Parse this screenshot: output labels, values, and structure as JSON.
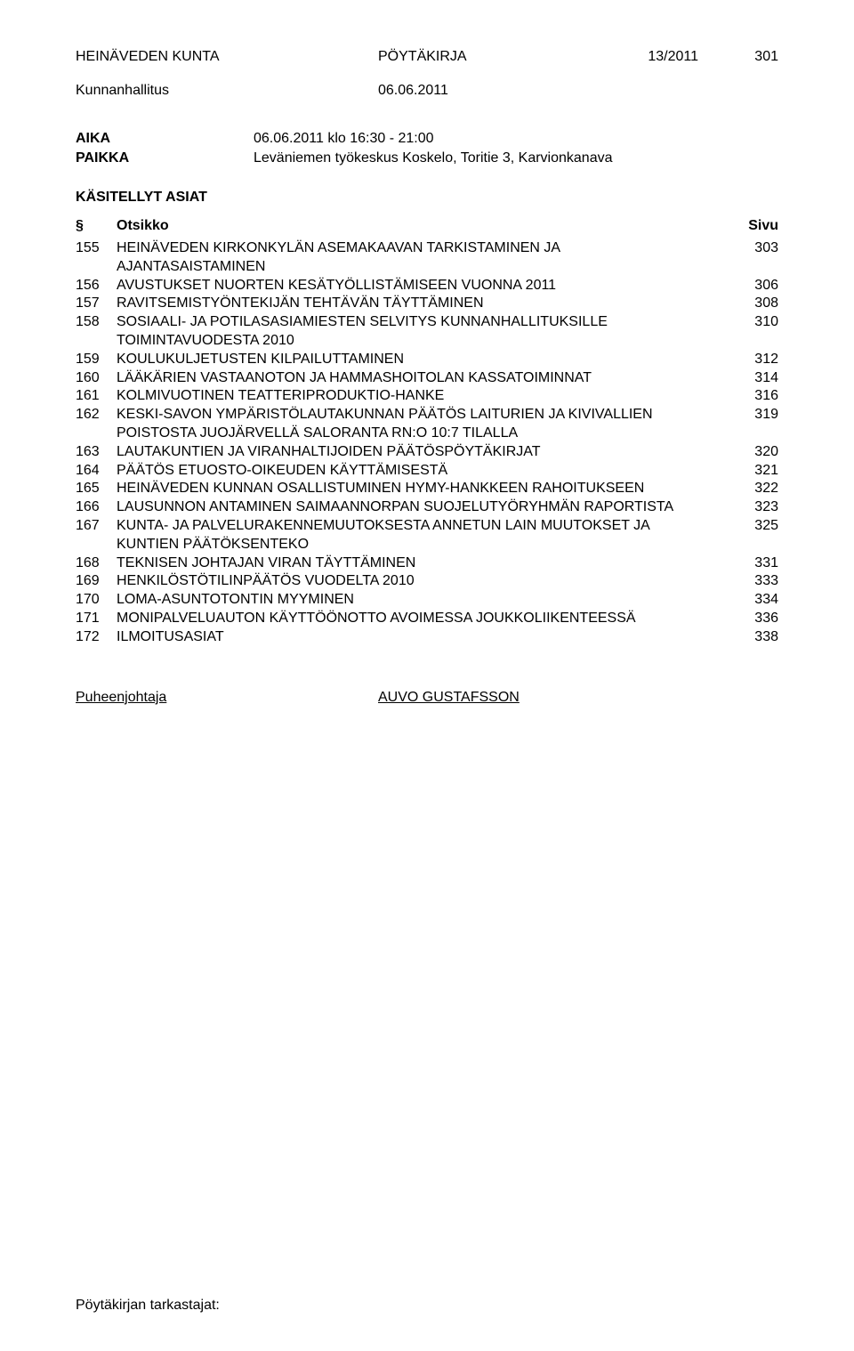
{
  "header": {
    "org": "HEINÄVEDEN KUNTA",
    "doc_type": "PÖYTÄKIRJA",
    "doc_number": "13/2011",
    "page_number": "301",
    "body": "Kunnanhallitus",
    "body_date": "06.06.2011"
  },
  "meta": {
    "time_label": "AIKA",
    "time_value": "06.06.2011 klo 16:30 - 21:00",
    "place_label": "PAIKKA",
    "place_value": "Leväniemen työkeskus Koskelo, Toritie 3, Karvionkanava",
    "handled_label": "KÄSITELLYT ASIAT"
  },
  "toc_head": {
    "sym": "§",
    "title": "Otsikko",
    "page": "Sivu"
  },
  "toc": [
    {
      "num": "155",
      "title": "HEINÄVEDEN KIRKONKYLÄN ASEMAKAAVAN TARKISTAMINEN JA AJANTASAISTAMINEN",
      "page": "303"
    },
    {
      "num": "156",
      "title": "AVUSTUKSET NUORTEN KESÄTYÖLLISTÄMISEEN VUONNA 2011",
      "page": "306"
    },
    {
      "num": "157",
      "title": "RAVITSEMISTYÖNTEKIJÄN TEHTÄVÄN TÄYTTÄMINEN",
      "page": "308"
    },
    {
      "num": "158",
      "title": "SOSIAALI- JA POTILASASIAMIESTEN SELVITYS KUNNANHALLITUKSILLE TOIMINTAVUODESTA 2010",
      "page": "310"
    },
    {
      "num": "159",
      "title": "KOULUKULJETUSTEN KILPAILUTTAMINEN",
      "page": "312"
    },
    {
      "num": "160",
      "title": "LÄÄKÄRIEN VASTAANOTON JA HAMMASHOITOLAN KASSATOIMINNAT",
      "page": "314"
    },
    {
      "num": "161",
      "title": "KOLMIVUOTINEN TEATTERIPRODUKTIO-HANKE",
      "page": "316"
    },
    {
      "num": "162",
      "title": "KESKI-SAVON YMPÄRISTÖLAUTAKUNNAN PÄÄTÖS LAITURIEN JA KIVIVALLIEN POISTOSTA JUOJÄRVELLÄ SALORANTA RN:O 10:7 TILALLA",
      "page": "319"
    },
    {
      "num": "163",
      "title": "LAUTAKUNTIEN JA VIRANHALTIJOIDEN PÄÄTÖSPÖYTÄKIRJAT",
      "page": "320"
    },
    {
      "num": "164",
      "title": "PÄÄTÖS ETUOSTO-OIKEUDEN KÄYTTÄMISESTÄ",
      "page": "321"
    },
    {
      "num": "165",
      "title": "HEINÄVEDEN KUNNAN OSALLISTUMINEN HYMY-HANKKEEN RAHOITUKSEEN",
      "page": "322"
    },
    {
      "num": "166",
      "title": "LAUSUNNON ANTAMINEN SAIMAANNORPAN SUOJELUTYÖRYHMÄN RAPORTISTA",
      "page": "323"
    },
    {
      "num": "167",
      "title": "KUNTA- JA PALVELURAKENNEMUUTOKSESTA ANNETUN LAIN MUUTOKSET JA KUNTIEN PÄÄTÖKSENTEKO",
      "page": "325"
    },
    {
      "num": "168",
      "title": "TEKNISEN JOHTAJAN VIRAN TÄYTTÄMINEN",
      "page": "331"
    },
    {
      "num": "169",
      "title": "HENKILÖSTÖTILINPÄÄTÖS VUODELTA 2010",
      "page": "333"
    },
    {
      "num": "170",
      "title": "LOMA-ASUNTOTONTIN MYYMINEN",
      "page": "334"
    },
    {
      "num": "171",
      "title": "MONIPALVELUAUTON KÄYTTÖÖNOTTO AVOIMESSA JOUKKOLIIKENTEESSÄ",
      "page": "336"
    },
    {
      "num": "172",
      "title": "ILMOITUSASIAT",
      "page": "338"
    }
  ],
  "chair": {
    "label": "Puheenjohtaja",
    "name": "AUVO GUSTAFSSON"
  },
  "footer": {
    "text": "Pöytäkirjan tarkastajat:"
  }
}
